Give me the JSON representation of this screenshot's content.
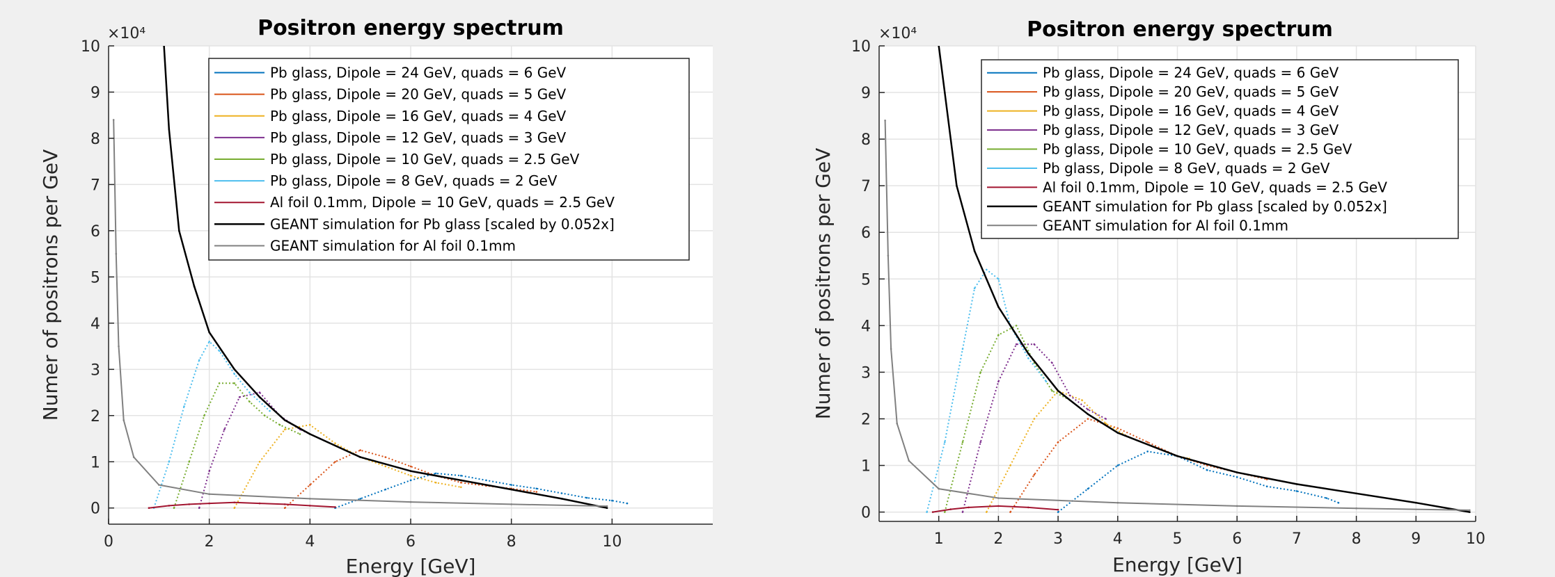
{
  "chart_data": [
    {
      "type": "line",
      "title": "Positron energy spectrum",
      "xlabel": "Energy [GeV]",
      "ylabel": "Numer of positrons per GeV",
      "y_exponent_label": "×10⁴",
      "y_scale": 10000,
      "xlim": [
        0,
        12
      ],
      "ylim": [
        -3500,
        100000
      ],
      "xticks": [
        0,
        2,
        4,
        6,
        8,
        10
      ],
      "xtick_labels": [
        "0",
        "2",
        "4",
        "6",
        "8",
        "10"
      ],
      "yticks": [
        0,
        10000,
        20000,
        30000,
        40000,
        50000,
        60000,
        70000,
        80000,
        90000,
        100000
      ],
      "ytick_labels": [
        "0",
        "1",
        "2",
        "3",
        "4",
        "5",
        "6",
        "7",
        "8",
        "9",
        "10"
      ],
      "grid": true,
      "legend_position": "top-right",
      "series": [
        {
          "name": "Pb glass, Dipole = 24 GeV, quads = 6 GeV",
          "color": "#0072bd",
          "style": "dotted",
          "x": [
            4.5,
            5.0,
            5.5,
            6.0,
            6.5,
            7.0,
            7.5,
            8.0,
            8.5,
            9.0,
            9.5,
            10.0,
            10.3
          ],
          "y": [
            0,
            2000,
            4000,
            6000,
            7500,
            7000,
            6000,
            5000,
            4200,
            3200,
            2200,
            1600,
            1000
          ]
        },
        {
          "name": "Pb glass, Dipole = 20 GeV, quads = 5 GeV",
          "color": "#d95319",
          "style": "dotted",
          "x": [
            3.5,
            4.0,
            4.5,
            5.0,
            5.5,
            6.0,
            6.5,
            7.0,
            7.5,
            8.0,
            8.5
          ],
          "y": [
            0,
            5000,
            10000,
            12500,
            11000,
            9000,
            7000,
            5500,
            4800,
            4200,
            3500
          ]
        },
        {
          "name": "Pb glass, Dipole = 16 GeV, quads = 4 GeV",
          "color": "#edb120",
          "style": "dotted",
          "x": [
            2.5,
            3.0,
            3.5,
            4.0,
            4.5,
            5.0,
            5.5,
            6.0,
            6.5,
            7.0
          ],
          "y": [
            0,
            10000,
            17000,
            18000,
            14000,
            11000,
            9000,
            7000,
            5500,
            4500
          ]
        },
        {
          "name": "Pb glass, Dipole = 12 GeV, quads = 3 GeV",
          "color": "#7e2f8e",
          "style": "dotted",
          "x": [
            1.8,
            2.0,
            2.3,
            2.6,
            3.0,
            3.4,
            3.8,
            4.2,
            4.6,
            5.0
          ],
          "y": [
            0,
            8000,
            17000,
            24000,
            25000,
            20000,
            17000,
            15000,
            13000,
            11000
          ]
        },
        {
          "name": "Pb glass, Dipole = 10 GeV, quads = 2.5 GeV",
          "color": "#77ac30",
          "style": "dotted",
          "x": [
            1.3,
            1.6,
            1.9,
            2.2,
            2.5,
            2.8,
            3.1,
            3.4,
            3.8
          ],
          "y": [
            0,
            10000,
            20000,
            27000,
            27000,
            23000,
            20000,
            18000,
            16000
          ]
        },
        {
          "name": "Pb glass, Dipole = 8 GeV, quads = 2 GeV",
          "color": "#4dbeee",
          "style": "dotted",
          "x": [
            0.9,
            1.2,
            1.5,
            1.8,
            2.0,
            2.2,
            2.5,
            2.8,
            3.2
          ],
          "y": [
            0,
            10000,
            22000,
            32000,
            36000,
            34000,
            29000,
            25000,
            21000
          ]
        },
        {
          "name": "Al foil 0.1mm, Dipole = 10 GeV, quads = 2.5 GeV",
          "color": "#a2142f",
          "style": "solid",
          "x": [
            0.8,
            1.2,
            1.6,
            2.0,
            2.5,
            3.0,
            3.5,
            4.0,
            4.5
          ],
          "y": [
            0,
            500,
            800,
            1000,
            1200,
            1000,
            800,
            500,
            200
          ]
        },
        {
          "name": "GEANT simulation for Pb glass [scaled by 0.052x]",
          "color": "#000000",
          "style": "solid",
          "x": [
            1.1,
            1.2,
            1.4,
            1.7,
            2.0,
            2.5,
            3.0,
            3.5,
            4.0,
            5.0,
            6.0,
            7.0,
            8.0,
            9.0,
            9.9
          ],
          "y": [
            100000,
            82000,
            60000,
            48000,
            38000,
            30000,
            24000,
            19000,
            16000,
            11000,
            8000,
            6000,
            4000,
            2000,
            0
          ]
        },
        {
          "name": "GEANT simulation for Al foil 0.1mm",
          "color": "#808080",
          "style": "solid",
          "x": [
            0.1,
            0.15,
            0.2,
            0.3,
            0.5,
            1.0,
            2.0,
            4.0,
            6.0,
            8.0,
            9.9
          ],
          "y": [
            84000,
            55000,
            35000,
            19000,
            11000,
            5000,
            3000,
            2000,
            1300,
            800,
            400
          ]
        }
      ]
    },
    {
      "type": "line",
      "title": "Positron energy spectrum",
      "xlabel": "Energy [GeV]",
      "ylabel": "Numer of positrons per GeV",
      "y_exponent_label": "×10⁴",
      "y_scale": 10000,
      "xlim": [
        0,
        10
      ],
      "ylim": [
        -2000,
        100000
      ],
      "xticks": [
        1,
        2,
        3,
        4,
        5,
        6,
        7,
        8,
        9,
        10
      ],
      "xtick_labels": [
        "1",
        "2",
        "3",
        "4",
        "5",
        "6",
        "7",
        "8",
        "9",
        "10"
      ],
      "yticks": [
        0,
        10000,
        20000,
        30000,
        40000,
        50000,
        60000,
        70000,
        80000,
        90000,
        100000
      ],
      "ytick_labels": [
        "0",
        "1",
        "2",
        "3",
        "4",
        "5",
        "6",
        "7",
        "8",
        "9",
        "10"
      ],
      "grid": true,
      "legend_position": "top-right",
      "series": [
        {
          "name": "Pb glass, Dipole = 24 GeV, quads = 6 GeV",
          "color": "#0072bd",
          "style": "dotted",
          "x": [
            3.0,
            3.5,
            4.0,
            4.5,
            5.0,
            5.5,
            6.0,
            6.5,
            7.0,
            7.5,
            7.7
          ],
          "y": [
            0,
            5000,
            10000,
            13000,
            12000,
            9000,
            7500,
            5500,
            4500,
            3000,
            2000
          ]
        },
        {
          "name": "Pb glass, Dipole = 20 GeV, quads = 5 GeV",
          "color": "#d95319",
          "style": "dotted",
          "x": [
            2.2,
            2.6,
            3.0,
            3.5,
            4.0,
            4.5,
            5.0,
            5.5,
            6.0,
            6.5
          ],
          "y": [
            0,
            8000,
            15000,
            20000,
            18000,
            15000,
            12000,
            10000,
            8500,
            7000
          ]
        },
        {
          "name": "Pb glass, Dipole = 16 GeV, quads = 4 GeV",
          "color": "#edb120",
          "style": "dotted",
          "x": [
            1.8,
            2.2,
            2.6,
            3.0,
            3.4,
            3.8,
            4.2,
            4.6,
            5.0,
            5.2
          ],
          "y": [
            0,
            10000,
            20000,
            26000,
            24000,
            19000,
            16000,
            14000,
            12000,
            11500
          ]
        },
        {
          "name": "Pb glass, Dipole = 12 GeV, quads = 3 GeV",
          "color": "#7e2f8e",
          "style": "dotted",
          "x": [
            1.4,
            1.7,
            2.0,
            2.3,
            2.6,
            2.9,
            3.2,
            3.5,
            3.8
          ],
          "y": [
            0,
            15000,
            28000,
            36000,
            36000,
            32000,
            25000,
            22000,
            20000
          ]
        },
        {
          "name": "Pb glass, Dipole = 10 GeV, quads = 2.5 GeV",
          "color": "#77ac30",
          "style": "dotted",
          "x": [
            1.1,
            1.4,
            1.7,
            2.0,
            2.3,
            2.6,
            2.9,
            3.2
          ],
          "y": [
            0,
            15000,
            30000,
            38000,
            40000,
            32000,
            26000,
            24000
          ]
        },
        {
          "name": "Pb glass, Dipole = 8 GeV, quads = 2 GeV",
          "color": "#4dbeee",
          "style": "dotted",
          "x": [
            0.8,
            1.1,
            1.4,
            1.6,
            1.8,
            2.0,
            2.2,
            2.5,
            2.8
          ],
          "y": [
            0,
            15000,
            35000,
            48000,
            52000,
            50000,
            40000,
            33000,
            28000
          ]
        },
        {
          "name": "Al foil 0.1mm, Dipole = 10 GeV, quads = 2.5 GeV",
          "color": "#a2142f",
          "style": "solid",
          "x": [
            0.9,
            1.2,
            1.5,
            2.0,
            2.5,
            3.0
          ],
          "y": [
            0,
            600,
            1000,
            1300,
            1000,
            500
          ]
        },
        {
          "name": "GEANT simulation for Pb glass [scaled by 0.052x]",
          "color": "#000000",
          "style": "solid",
          "x": [
            1.0,
            1.1,
            1.3,
            1.6,
            2.0,
            2.5,
            3.0,
            3.5,
            4.0,
            5.0,
            6.0,
            7.0,
            8.0,
            9.0,
            9.9
          ],
          "y": [
            100000,
            90000,
            70000,
            56000,
            44000,
            34000,
            26000,
            21000,
            17000,
            12000,
            8500,
            6000,
            4000,
            2000,
            0
          ]
        },
        {
          "name": "GEANT simulation for Al foil 0.1mm",
          "color": "#808080",
          "style": "solid",
          "x": [
            0.1,
            0.15,
            0.2,
            0.3,
            0.5,
            1.0,
            2.0,
            4.0,
            6.0,
            8.0,
            9.9
          ],
          "y": [
            84000,
            55000,
            35000,
            19000,
            11000,
            5000,
            3000,
            2000,
            1300,
            800,
            400
          ]
        }
      ]
    }
  ]
}
